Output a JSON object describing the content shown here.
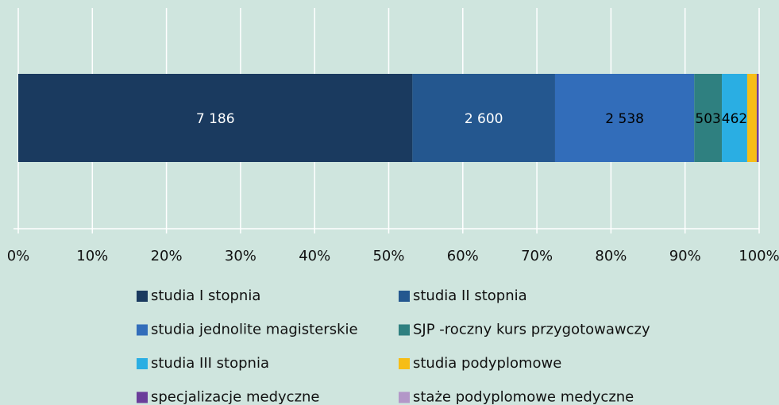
{
  "chart_data": {
    "type": "bar",
    "orientation": "horizontal",
    "stacking": "percent",
    "series": [
      {
        "name": "studia I stopnia",
        "color": "#1a3a5f",
        "values": [
          7186
        ],
        "value_labels": [
          "7 186"
        ]
      },
      {
        "name": "studia II stopnia",
        "color": "#24578f",
        "values": [
          2600
        ],
        "value_labels": [
          "2 600"
        ]
      },
      {
        "name": "studia jednolite magisterskie",
        "color": "#326dba",
        "values": [
          2538
        ],
        "value_labels": [
          "2 538"
        ]
      },
      {
        "name": "SJP -roczny kurs przygotowawczy",
        "color": "#2f8080",
        "values": [
          503
        ]
      },
      {
        "name": "studia III stopnia",
        "color": "#2aaee3",
        "values": [
          462
        ]
      },
      {
        "name": "studia podyplomowe",
        "color": "#f6bd16",
        "values": [
          174
        ]
      },
      {
        "name": "specjalizacje medyczne",
        "color": "#6a3d9a",
        "values": [
          29
        ]
      },
      {
        "name": "staże podyplomowe medyczne",
        "color": "#b397c8",
        "values": [
          15
        ]
      }
    ],
    "xlim": [
      0,
      100
    ],
    "xticks": [
      {
        "value": 0,
        "label": "0%"
      },
      {
        "value": 10,
        "label": "10%"
      },
      {
        "value": 20,
        "label": "20%"
      },
      {
        "value": 30,
        "label": "30%"
      },
      {
        "value": 40,
        "label": "40%"
      },
      {
        "value": 50,
        "label": "50%"
      },
      {
        "value": 60,
        "label": "60%"
      },
      {
        "value": 70,
        "label": "70%"
      },
      {
        "value": 80,
        "label": "80%"
      },
      {
        "value": 90,
        "label": "90%"
      },
      {
        "value": 100,
        "label": "100%"
      }
    ],
    "grid": true
  }
}
